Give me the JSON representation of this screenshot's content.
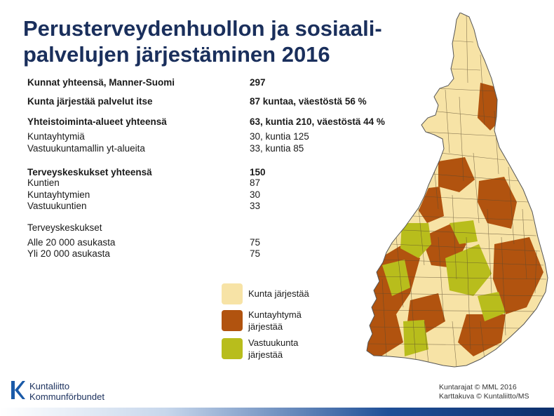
{
  "title_line1": "Perusterveydenhuollon ja sosiaali-",
  "title_line2": "palvelujen järjestäminen 2016",
  "stats": [
    {
      "label": "Kunnat yhteensä, Manner-Suomi",
      "value": "297",
      "bold": true
    },
    {
      "label": "Kunta järjestää palvelut itse",
      "value": "87 kuntaa, väestöstä 56 %",
      "bold": true
    },
    {
      "label": "Yhteistoiminta-alueet yhteensä",
      "value": "63, kuntia 210, väestöstä 44 %",
      "bold": true
    },
    {
      "label": "Kuntayhtymiä",
      "value": "30, kuntia 125",
      "bold": false
    },
    {
      "label": "Vastuukuntamallin yt-alueita",
      "value": "33, kuntia 85",
      "bold": false
    },
    {
      "label": "Terveyskeskukset yhteensä",
      "value": "150",
      "bold": true
    },
    {
      "label": "Kuntien",
      "value": "87",
      "bold": false
    },
    {
      "label": "Kuntayhtymien",
      "value": "30",
      "bold": false
    },
    {
      "label": "Vastuukuntien",
      "value": "33",
      "bold": false
    },
    {
      "label": "Terveyskeskukset",
      "value": "",
      "bold": false
    },
    {
      "label": "Alle 20 000 asukasta",
      "value": "75",
      "bold": false
    },
    {
      "label": "Yli 20 000 asukasta",
      "value": "75",
      "bold": false
    }
  ],
  "legend": [
    {
      "label": "Kunta järjestää",
      "color": "#f7e3a6"
    },
    {
      "label": "Kuntayhtymä järjestää",
      "color": "#b1530f"
    },
    {
      "label": "Vastuukunta järjestää",
      "color": "#b8bd1c"
    }
  ],
  "colors": {
    "title": "#1a2f5c",
    "kunta": "#f7e3a6",
    "kuntayhtyma": "#b1530f",
    "vastuukunta": "#b8bd1c",
    "border": "#555555"
  },
  "logo": {
    "line1": "Kuntaliitto",
    "line2": "Kommunförbundet"
  },
  "credits": {
    "line1": "Kuntarajat © MML 2016",
    "line2": "Karttakuva © Kuntaliitto/MS"
  }
}
